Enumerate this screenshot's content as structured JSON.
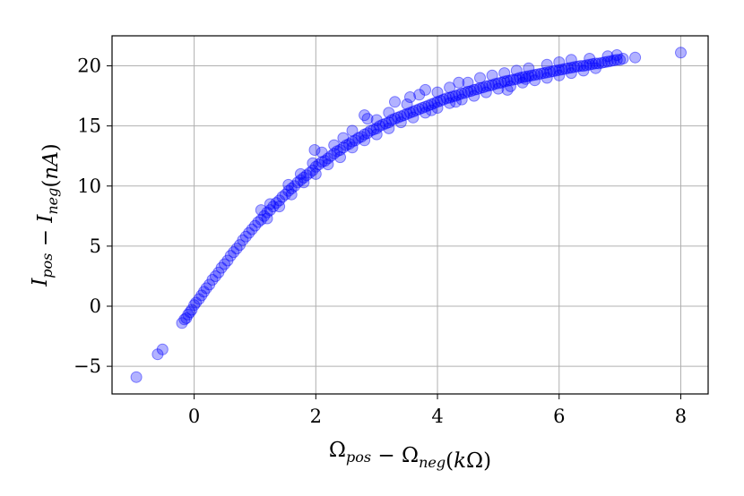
{
  "chart_data": {
    "type": "scatter",
    "title": "",
    "xlabel": {
      "parts": [
        {
          "text": "Ω",
          "italic": false
        },
        {
          "text": "pos",
          "italic": true,
          "sub": true
        },
        {
          "text": " − ",
          "italic": false
        },
        {
          "text": "Ω",
          "italic": false
        },
        {
          "text": "neg",
          "italic": true,
          "sub": true
        },
        {
          "text": "(",
          "italic": false
        },
        {
          "text": "k",
          "italic": true
        },
        {
          "text": "Ω)",
          "italic": false
        }
      ]
    },
    "ylabel": {
      "parts": [
        {
          "text": "I",
          "italic": true
        },
        {
          "text": "pos",
          "italic": true,
          "sub": true
        },
        {
          "text": " − ",
          "italic": false
        },
        {
          "text": "I",
          "italic": true
        },
        {
          "text": "neg",
          "italic": true,
          "sub": true
        },
        {
          "text": "(",
          "italic": false
        },
        {
          "text": "nA",
          "italic": true
        },
        {
          "text": ")",
          "italic": false
        }
      ]
    },
    "xlim": [
      -1.35,
      8.45
    ],
    "ylim": [
      -7.3,
      22.5
    ],
    "xticks": [
      0,
      2,
      4,
      6,
      8
    ],
    "yticks": [
      -5,
      0,
      5,
      10,
      15,
      20
    ],
    "xtick_labels": [
      "0",
      "2",
      "4",
      "6",
      "8"
    ],
    "ytick_labels": [
      "−5",
      "0",
      "5",
      "10",
      "15",
      "20"
    ],
    "grid": true,
    "marker_color": "#0000ff",
    "marker_alpha": 0.3,
    "series": [
      {
        "points": [
          [
            -0.95,
            -5.9
          ],
          [
            -0.6,
            -4.0
          ],
          [
            -0.52,
            -3.6
          ],
          [
            -0.2,
            -1.4
          ],
          [
            -0.16,
            -1.1
          ],
          [
            -0.13,
            -1.0
          ],
          [
            -0.1,
            -0.7
          ],
          [
            -0.07,
            -0.5
          ],
          [
            -0.04,
            -0.3
          ],
          [
            0.0,
            0.1
          ],
          [
            0.03,
            0.3
          ],
          [
            0.08,
            0.6
          ],
          [
            0.12,
            0.9
          ],
          [
            0.16,
            1.2
          ],
          [
            0.2,
            1.5
          ],
          [
            0.25,
            1.8
          ],
          [
            0.3,
            2.2
          ],
          [
            0.35,
            2.5
          ],
          [
            0.4,
            2.8
          ],
          [
            0.45,
            3.2
          ],
          [
            0.5,
            3.5
          ],
          [
            0.55,
            3.8
          ],
          [
            0.6,
            4.2
          ],
          [
            0.65,
            4.5
          ],
          [
            0.7,
            4.8
          ],
          [
            0.75,
            5.1
          ],
          [
            0.8,
            5.5
          ],
          [
            0.85,
            5.8
          ],
          [
            0.9,
            6.1
          ],
          [
            0.95,
            6.4
          ],
          [
            1.0,
            6.7
          ],
          [
            1.05,
            7.0
          ],
          [
            1.1,
            7.2
          ],
          [
            1.15,
            7.5
          ],
          [
            1.2,
            7.8
          ],
          [
            1.25,
            8.0
          ],
          [
            1.3,
            8.3
          ],
          [
            1.35,
            8.6
          ],
          [
            1.4,
            8.8
          ],
          [
            1.45,
            9.1
          ],
          [
            1.5,
            9.3
          ],
          [
            1.55,
            9.6
          ],
          [
            1.6,
            9.8
          ],
          [
            1.65,
            10.0
          ],
          [
            1.7,
            10.3
          ],
          [
            1.75,
            10.5
          ],
          [
            1.8,
            10.7
          ],
          [
            1.85,
            10.9
          ],
          [
            1.9,
            11.1
          ],
          [
            1.95,
            11.3
          ],
          [
            2.0,
            11.6
          ],
          [
            2.05,
            11.8
          ],
          [
            2.1,
            12.0
          ],
          [
            2.15,
            12.1
          ],
          [
            2.2,
            12.3
          ],
          [
            2.25,
            12.5
          ],
          [
            2.3,
            12.7
          ],
          [
            2.35,
            12.9
          ],
          [
            2.4,
            13.0
          ],
          [
            2.45,
            13.2
          ],
          [
            2.5,
            13.4
          ],
          [
            2.55,
            13.5
          ],
          [
            2.6,
            13.7
          ],
          [
            2.65,
            13.8
          ],
          [
            2.7,
            14.0
          ],
          [
            2.75,
            14.1
          ],
          [
            2.8,
            14.3
          ],
          [
            2.85,
            14.4
          ],
          [
            2.9,
            14.6
          ],
          [
            2.95,
            14.7
          ],
          [
            3.0,
            14.8
          ],
          [
            3.05,
            15.0
          ],
          [
            3.1,
            15.1
          ],
          [
            3.15,
            15.2
          ],
          [
            3.2,
            15.3
          ],
          [
            3.25,
            15.5
          ],
          [
            3.3,
            15.6
          ],
          [
            3.35,
            15.7
          ],
          [
            3.4,
            15.8
          ],
          [
            3.45,
            15.9
          ],
          [
            3.5,
            16.0
          ],
          [
            3.55,
            16.1
          ],
          [
            3.6,
            16.2
          ],
          [
            3.65,
            16.3
          ],
          [
            3.7,
            16.4
          ],
          [
            3.75,
            16.5
          ],
          [
            3.8,
            16.6
          ],
          [
            3.85,
            16.7
          ],
          [
            3.9,
            16.8
          ],
          [
            3.95,
            16.9
          ],
          [
            4.0,
            17.0
          ],
          [
            4.05,
            17.1
          ],
          [
            4.1,
            17.2
          ],
          [
            4.15,
            17.3
          ],
          [
            4.2,
            17.35
          ],
          [
            4.25,
            17.45
          ],
          [
            4.3,
            17.5
          ],
          [
            4.35,
            17.6
          ],
          [
            4.4,
            17.7
          ],
          [
            4.45,
            17.75
          ],
          [
            4.5,
            17.85
          ],
          [
            4.55,
            17.9
          ],
          [
            4.6,
            18.0
          ],
          [
            4.65,
            18.05
          ],
          [
            4.7,
            18.15
          ],
          [
            4.75,
            18.2
          ],
          [
            4.8,
            18.3
          ],
          [
            4.85,
            18.35
          ],
          [
            4.9,
            18.4
          ],
          [
            4.95,
            18.5
          ],
          [
            5.0,
            18.55
          ],
          [
            5.05,
            18.6
          ],
          [
            5.1,
            18.7
          ],
          [
            5.15,
            18.75
          ],
          [
            5.2,
            18.8
          ],
          [
            5.25,
            18.85
          ],
          [
            5.3,
            18.9
          ],
          [
            5.35,
            19.0
          ],
          [
            5.4,
            19.05
          ],
          [
            5.45,
            19.1
          ],
          [
            5.5,
            19.15
          ],
          [
            5.55,
            19.2
          ],
          [
            5.6,
            19.25
          ],
          [
            5.65,
            19.3
          ],
          [
            5.7,
            19.35
          ],
          [
            5.75,
            19.4
          ],
          [
            5.8,
            19.45
          ],
          [
            5.85,
            19.5
          ],
          [
            5.9,
            19.55
          ],
          [
            5.95,
            19.6
          ],
          [
            6.0,
            19.65
          ],
          [
            6.05,
            19.7
          ],
          [
            6.1,
            19.75
          ],
          [
            6.15,
            19.8
          ],
          [
            6.2,
            19.85
          ],
          [
            6.25,
            19.9
          ],
          [
            6.3,
            19.95
          ],
          [
            6.35,
            20.0
          ],
          [
            6.4,
            20.0
          ],
          [
            6.45,
            20.05
          ],
          [
            6.5,
            20.1
          ],
          [
            6.55,
            20.15
          ],
          [
            6.6,
            20.2
          ],
          [
            6.65,
            20.2
          ],
          [
            6.7,
            20.25
          ],
          [
            6.75,
            20.3
          ],
          [
            6.8,
            20.35
          ],
          [
            6.85,
            20.4
          ],
          [
            6.9,
            20.45
          ],
          [
            6.95,
            20.5
          ],
          [
            7.0,
            20.5
          ],
          [
            7.05,
            20.6
          ],
          [
            7.25,
            20.7
          ],
          [
            8.0,
            21.1
          ],
          [
            1.1,
            8.0
          ],
          [
            1.25,
            8.5
          ],
          [
            1.55,
            10.1
          ],
          [
            1.75,
            11.0
          ],
          [
            1.95,
            11.9
          ],
          [
            1.98,
            13.0
          ],
          [
            2.1,
            12.8
          ],
          [
            2.3,
            13.4
          ],
          [
            2.45,
            14.0
          ],
          [
            2.6,
            14.6
          ],
          [
            2.8,
            15.9
          ],
          [
            2.85,
            15.6
          ],
          [
            3.0,
            15.5
          ],
          [
            3.2,
            16.1
          ],
          [
            3.3,
            17.0
          ],
          [
            3.5,
            16.8
          ],
          [
            3.55,
            17.4
          ],
          [
            3.7,
            17.6
          ],
          [
            3.8,
            18.0
          ],
          [
            4.0,
            17.8
          ],
          [
            4.2,
            18.2
          ],
          [
            4.35,
            18.6
          ],
          [
            4.5,
            18.6
          ],
          [
            4.7,
            19.0
          ],
          [
            4.9,
            19.2
          ],
          [
            5.1,
            19.4
          ],
          [
            5.3,
            19.6
          ],
          [
            5.5,
            19.8
          ],
          [
            5.8,
            20.1
          ],
          [
            6.0,
            20.3
          ],
          [
            6.2,
            20.5
          ],
          [
            6.5,
            20.6
          ],
          [
            6.8,
            20.8
          ],
          [
            6.95,
            20.9
          ],
          [
            1.2,
            7.3
          ],
          [
            1.4,
            8.3
          ],
          [
            1.6,
            9.3
          ],
          [
            1.8,
            10.3
          ],
          [
            2.0,
            11.0
          ],
          [
            2.2,
            11.8
          ],
          [
            2.4,
            12.4
          ],
          [
            2.6,
            13.2
          ],
          [
            2.8,
            13.8
          ],
          [
            3.0,
            14.3
          ],
          [
            3.2,
            14.8
          ],
          [
            3.4,
            15.3
          ],
          [
            3.6,
            15.7
          ],
          [
            3.8,
            16.1
          ],
          [
            4.0,
            16.5
          ],
          [
            4.2,
            16.9
          ],
          [
            4.4,
            17.2
          ],
          [
            4.6,
            17.5
          ],
          [
            4.8,
            17.8
          ],
          [
            5.0,
            18.1
          ],
          [
            5.2,
            18.3
          ],
          [
            5.4,
            18.6
          ],
          [
            5.6,
            18.8
          ],
          [
            5.8,
            19.0
          ],
          [
            6.0,
            19.2
          ],
          [
            6.2,
            19.4
          ],
          [
            6.4,
            19.6
          ],
          [
            6.6,
            19.8
          ],
          [
            3.9,
            16.3
          ],
          [
            4.3,
            17.0
          ],
          [
            5.15,
            18.0
          ],
          [
            5.45,
            18.9
          ]
        ]
      }
    ]
  }
}
